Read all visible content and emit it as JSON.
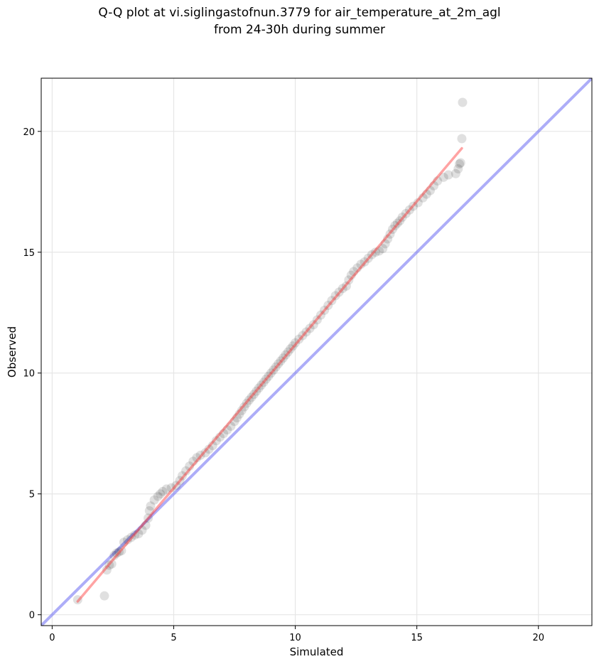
{
  "chart_data": {
    "type": "scatter",
    "title_line1": "Q-Q plot at vi.siglingastofnun.3779 for air_temperature_at_2m_agl",
    "title_line2": "from 24-30h during summer",
    "xlabel": "Simulated",
    "ylabel": "Observed",
    "xlim": [
      -0.45,
      22.2
    ],
    "ylim": [
      -0.45,
      22.2
    ],
    "xticks": [
      "0",
      "5",
      "10",
      "15",
      "20"
    ],
    "yticks": [
      "0",
      "5",
      "10",
      "15",
      "20"
    ],
    "grid": true,
    "series": [
      {
        "kind": "quantiles",
        "color": "#000000",
        "points": [
          [
            1.05,
            0.62
          ],
          [
            2.15,
            0.78
          ],
          [
            2.25,
            1.85
          ],
          [
            2.35,
            2.05
          ],
          [
            2.45,
            2.1
          ],
          [
            2.55,
            2.45
          ],
          [
            2.65,
            2.55
          ],
          [
            2.75,
            2.6
          ],
          [
            2.85,
            2.65
          ],
          [
            2.95,
            3.0
          ],
          [
            3.1,
            3.1
          ],
          [
            3.25,
            3.2
          ],
          [
            3.4,
            3.3
          ],
          [
            3.55,
            3.35
          ],
          [
            3.7,
            3.5
          ],
          [
            3.85,
            3.7
          ],
          [
            3.95,
            4.0
          ],
          [
            4.0,
            4.3
          ],
          [
            4.05,
            4.5
          ],
          [
            4.2,
            4.75
          ],
          [
            4.35,
            4.9
          ],
          [
            4.45,
            5.0
          ],
          [
            4.55,
            5.1
          ],
          [
            4.7,
            5.2
          ],
          [
            4.9,
            5.25
          ],
          [
            5.1,
            5.35
          ],
          [
            5.25,
            5.55
          ],
          [
            5.35,
            5.75
          ],
          [
            5.5,
            5.95
          ],
          [
            5.65,
            6.15
          ],
          [
            5.8,
            6.35
          ],
          [
            5.95,
            6.5
          ],
          [
            6.1,
            6.6
          ],
          [
            6.3,
            6.7
          ],
          [
            6.45,
            6.85
          ],
          [
            6.6,
            7.0
          ],
          [
            6.75,
            7.2
          ],
          [
            6.9,
            7.35
          ],
          [
            7.05,
            7.5
          ],
          [
            7.2,
            7.65
          ],
          [
            7.35,
            7.8
          ],
          [
            7.5,
            8.0
          ],
          [
            7.6,
            8.15
          ],
          [
            7.7,
            8.3
          ],
          [
            7.8,
            8.45
          ],
          [
            7.9,
            8.6
          ],
          [
            8.0,
            8.75
          ],
          [
            8.1,
            8.88
          ],
          [
            8.2,
            9.0
          ],
          [
            8.3,
            9.12
          ],
          [
            8.4,
            9.25
          ],
          [
            8.5,
            9.38
          ],
          [
            8.6,
            9.5
          ],
          [
            8.7,
            9.62
          ],
          [
            8.8,
            9.75
          ],
          [
            8.9,
            9.87
          ],
          [
            9.0,
            10.0
          ],
          [
            9.1,
            10.12
          ],
          [
            9.2,
            10.25
          ],
          [
            9.3,
            10.38
          ],
          [
            9.4,
            10.5
          ],
          [
            9.5,
            10.62
          ],
          [
            9.6,
            10.75
          ],
          [
            9.7,
            10.87
          ],
          [
            9.8,
            11.0
          ],
          [
            9.9,
            11.12
          ],
          [
            10.0,
            11.25
          ],
          [
            10.15,
            11.4
          ],
          [
            10.3,
            11.55
          ],
          [
            10.45,
            11.7
          ],
          [
            10.6,
            11.85
          ],
          [
            10.75,
            12.0
          ],
          [
            10.9,
            12.2
          ],
          [
            11.05,
            12.4
          ],
          [
            11.2,
            12.6
          ],
          [
            11.35,
            12.8
          ],
          [
            11.5,
            13.0
          ],
          [
            11.65,
            13.2
          ],
          [
            11.8,
            13.35
          ],
          [
            11.95,
            13.5
          ],
          [
            12.1,
            13.6
          ],
          [
            12.2,
            13.85
          ],
          [
            12.3,
            14.05
          ],
          [
            12.4,
            14.2
          ],
          [
            12.55,
            14.35
          ],
          [
            12.7,
            14.5
          ],
          [
            12.85,
            14.6
          ],
          [
            13.0,
            14.75
          ],
          [
            13.15,
            14.9
          ],
          [
            13.3,
            15.0
          ],
          [
            13.45,
            15.05
          ],
          [
            13.6,
            15.15
          ],
          [
            13.7,
            15.35
          ],
          [
            13.8,
            15.55
          ],
          [
            13.9,
            15.75
          ],
          [
            14.0,
            15.95
          ],
          [
            14.1,
            16.1
          ],
          [
            14.2,
            16.2
          ],
          [
            14.3,
            16.3
          ],
          [
            14.4,
            16.45
          ],
          [
            14.55,
            16.6
          ],
          [
            14.7,
            16.75
          ],
          [
            14.85,
            16.9
          ],
          [
            15.05,
            17.05
          ],
          [
            15.25,
            17.25
          ],
          [
            15.4,
            17.4
          ],
          [
            15.55,
            17.55
          ],
          [
            15.7,
            17.75
          ],
          [
            15.85,
            17.95
          ],
          [
            16.1,
            18.1
          ],
          [
            16.3,
            18.2
          ],
          [
            16.6,
            18.25
          ],
          [
            16.7,
            18.45
          ],
          [
            16.75,
            18.65
          ],
          [
            16.8,
            18.7
          ],
          [
            16.85,
            19.7
          ],
          [
            16.88,
            21.2
          ]
        ]
      },
      {
        "kind": "fit-line",
        "color": "#ff3333",
        "x": [
          1.05,
          16.85
        ],
        "y": [
          0.55,
          19.3
        ]
      },
      {
        "kind": "reference-1-to-1",
        "color": "#6a6af2",
        "x": [
          -0.45,
          22.2
        ],
        "y": [
          -0.45,
          22.2
        ]
      }
    ]
  }
}
